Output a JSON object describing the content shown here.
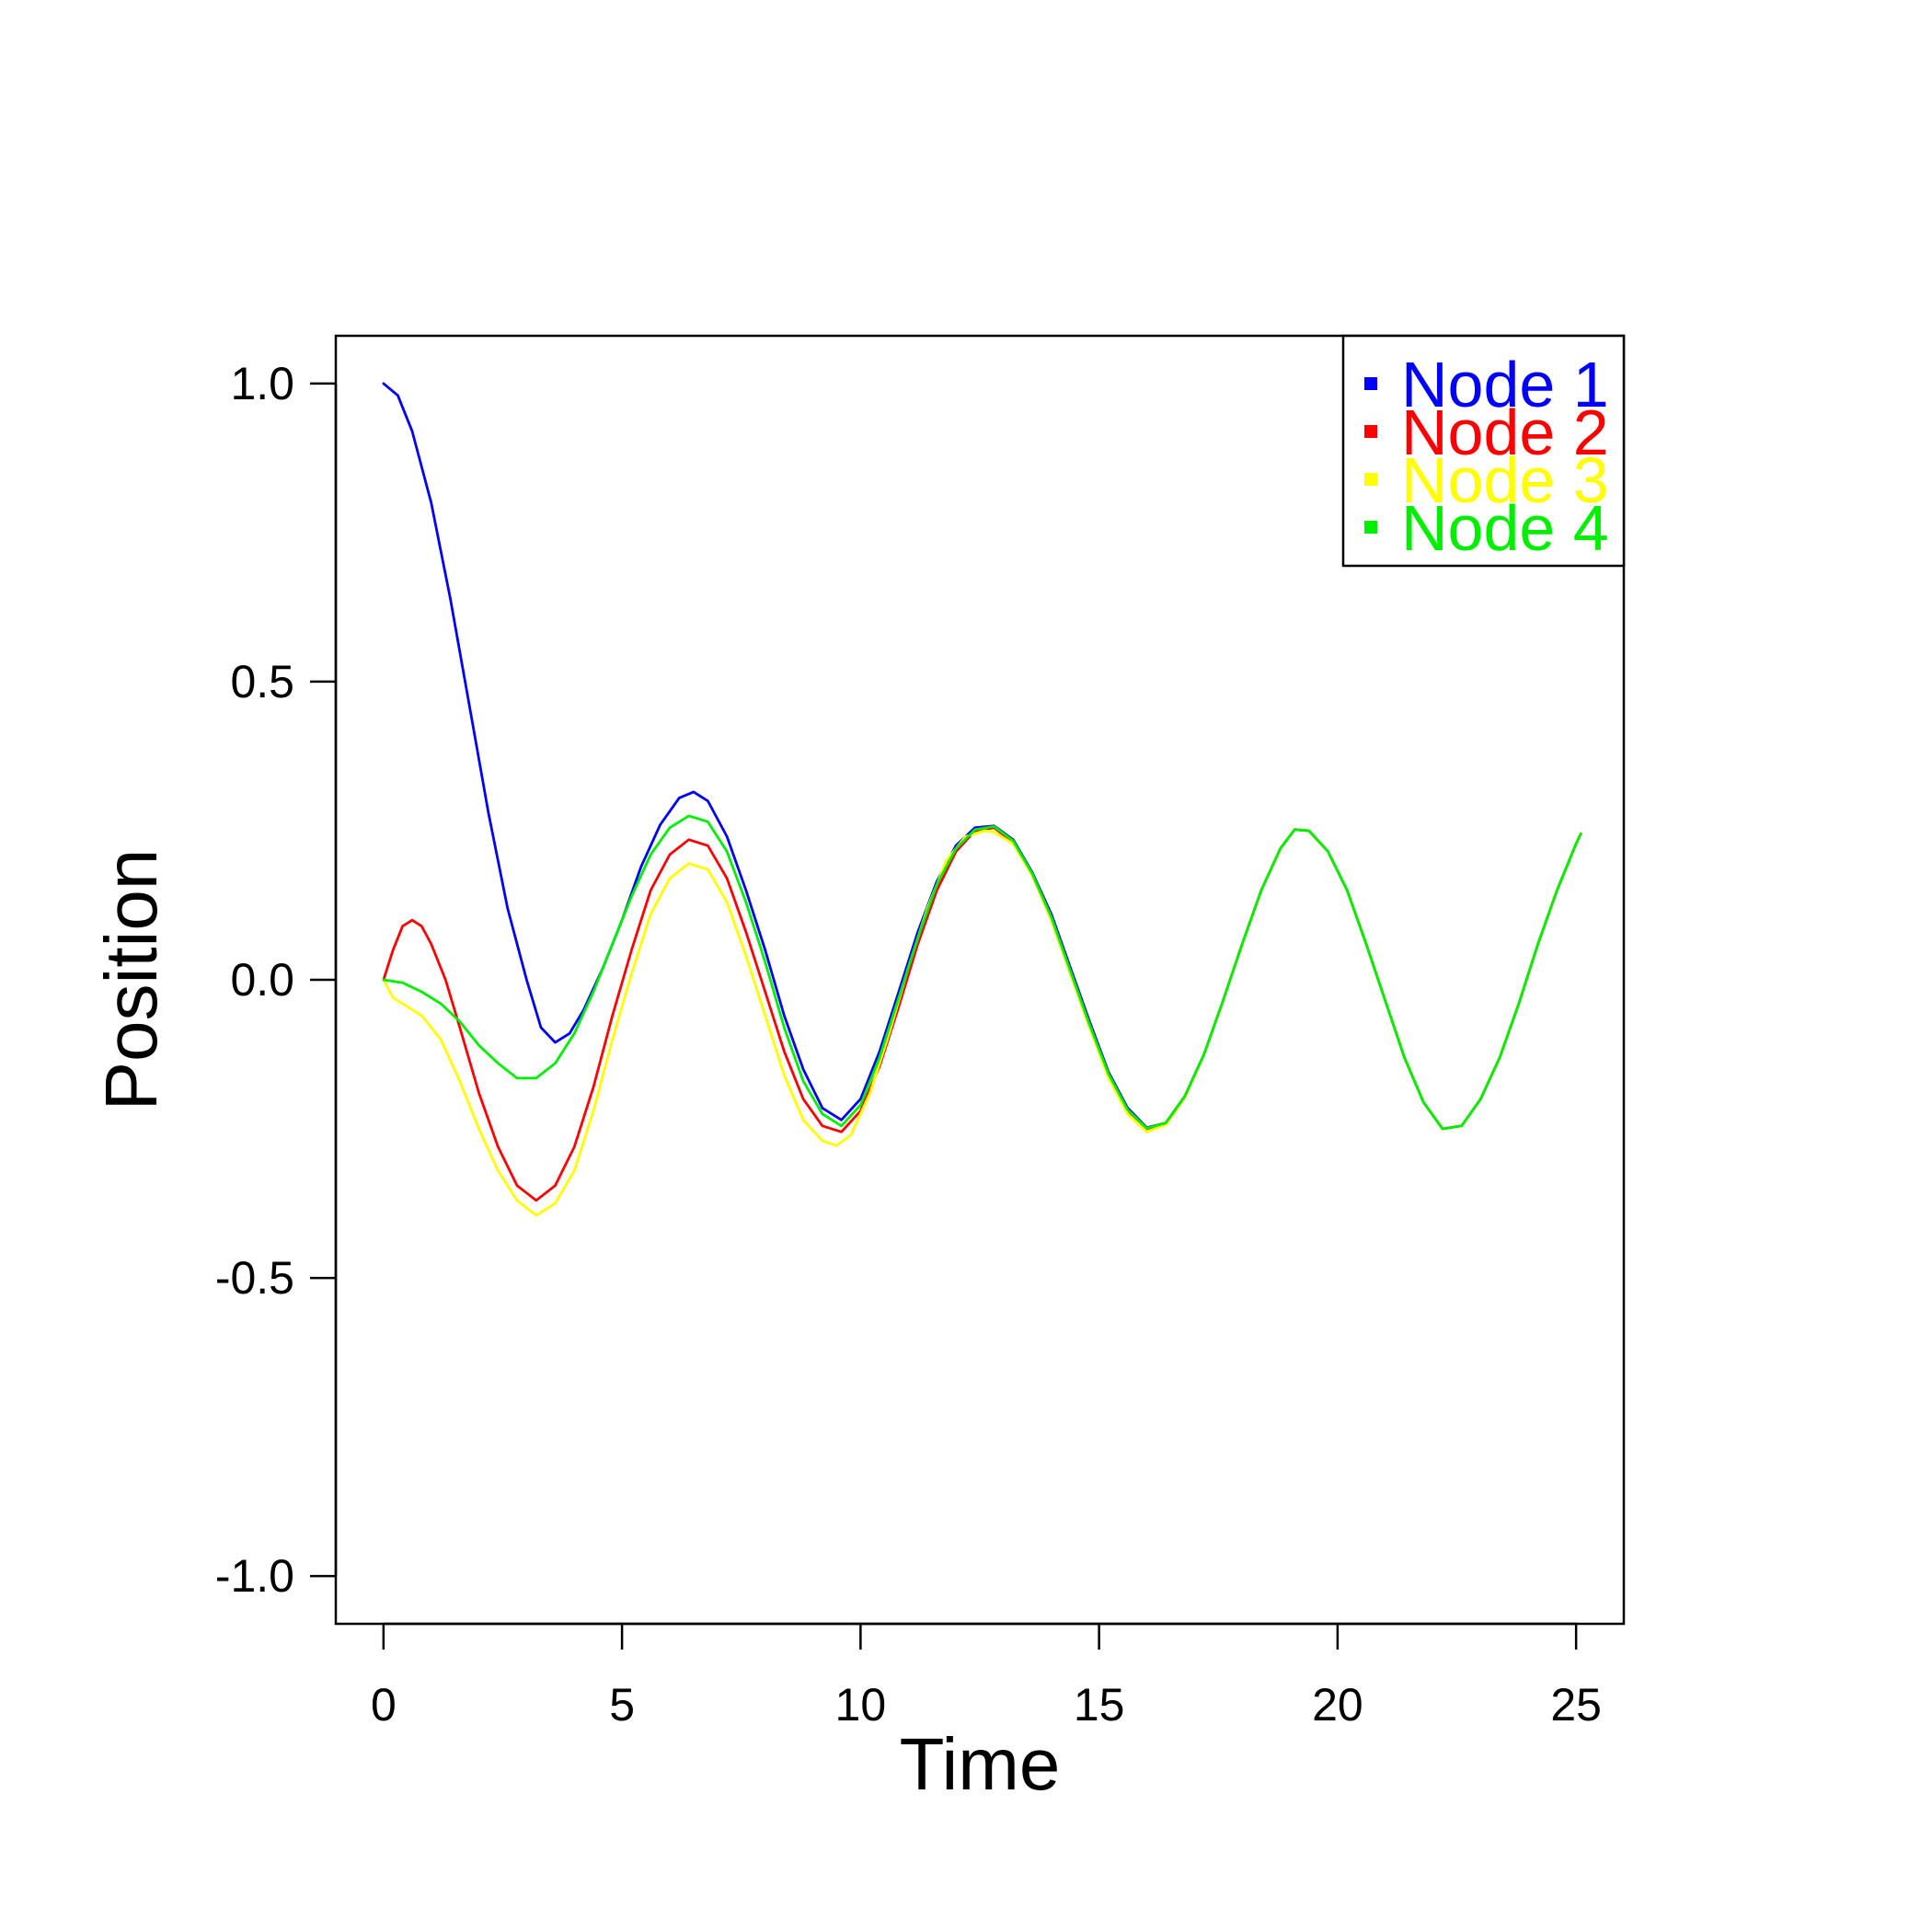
{
  "chart_data": {
    "type": "line",
    "title": "",
    "xlabel": "Time",
    "ylabel": "Position",
    "xlim": [
      -1,
      26
    ],
    "ylim": [
      -1.08,
      1.08
    ],
    "xticks": [
      0,
      5,
      10,
      15,
      20,
      25
    ],
    "yticks": [
      -1.0,
      -0.5,
      0.0,
      0.5,
      1.0
    ],
    "xtick_labels": [
      "0",
      "5",
      "10",
      "15",
      "20",
      "25"
    ],
    "ytick_labels": [
      "-1.0",
      "-0.5",
      "0.0",
      "0.5",
      "1.0"
    ],
    "grid": false,
    "legend_position": "top-right",
    "series": [
      {
        "name": "Node 1",
        "color": "#0000ff",
        "points": [
          [
            0,
            1.0
          ],
          [
            0.3,
            0.98
          ],
          [
            0.6,
            0.92
          ],
          [
            1.0,
            0.8
          ],
          [
            1.4,
            0.64
          ],
          [
            1.8,
            0.46
          ],
          [
            2.2,
            0.28
          ],
          [
            2.6,
            0.12
          ],
          [
            3.0,
            0.0
          ],
          [
            3.3,
            -0.08
          ],
          [
            3.6,
            -0.105
          ],
          [
            3.9,
            -0.09
          ],
          [
            4.2,
            -0.05
          ],
          [
            4.6,
            0.02
          ],
          [
            5.0,
            0.1
          ],
          [
            5.4,
            0.19
          ],
          [
            5.8,
            0.26
          ],
          [
            6.2,
            0.305
          ],
          [
            6.5,
            0.315
          ],
          [
            6.8,
            0.3
          ],
          [
            7.2,
            0.24
          ],
          [
            7.6,
            0.15
          ],
          [
            8.0,
            0.05
          ],
          [
            8.4,
            -0.06
          ],
          [
            8.8,
            -0.15
          ],
          [
            9.2,
            -0.215
          ],
          [
            9.6,
            -0.235
          ],
          [
            10.0,
            -0.2
          ],
          [
            10.4,
            -0.12
          ],
          [
            10.8,
            -0.02
          ],
          [
            11.2,
            0.08
          ],
          [
            11.6,
            0.165
          ],
          [
            12.0,
            0.225
          ],
          [
            12.4,
            0.255
          ],
          [
            12.8,
            0.258
          ],
          [
            13.2,
            0.235
          ],
          [
            13.6,
            0.18
          ],
          [
            14.0,
            0.11
          ],
          [
            14.4,
            0.02
          ],
          [
            14.8,
            -0.07
          ],
          [
            15.2,
            -0.155
          ],
          [
            15.6,
            -0.215
          ],
          [
            16.0,
            -0.248
          ],
          [
            16.4,
            -0.24
          ],
          [
            16.8,
            -0.195
          ],
          [
            17.2,
            -0.125
          ],
          [
            17.6,
            -0.035
          ],
          [
            18.0,
            0.06
          ],
          [
            18.4,
            0.15
          ],
          [
            18.8,
            0.22
          ],
          [
            19.1,
            0.252
          ],
          [
            19.4,
            0.25
          ],
          [
            19.8,
            0.215
          ],
          [
            20.2,
            0.15
          ],
          [
            20.6,
            0.06
          ],
          [
            21.0,
            -0.035
          ],
          [
            21.4,
            -0.13
          ],
          [
            21.8,
            -0.205
          ],
          [
            22.2,
            -0.25
          ],
          [
            22.6,
            -0.245
          ],
          [
            23.0,
            -0.2
          ],
          [
            23.4,
            -0.13
          ],
          [
            23.8,
            -0.04
          ],
          [
            24.2,
            0.06
          ],
          [
            24.6,
            0.15
          ],
          [
            25.0,
            0.228
          ],
          [
            25.1,
            0.245
          ]
        ]
      },
      {
        "name": "Node 2",
        "color": "#ff0000",
        "points": [
          [
            0,
            0.0
          ],
          [
            0.2,
            0.05
          ],
          [
            0.4,
            0.09
          ],
          [
            0.6,
            0.1
          ],
          [
            0.8,
            0.09
          ],
          [
            1.0,
            0.06
          ],
          [
            1.3,
            0.0
          ],
          [
            1.6,
            -0.08
          ],
          [
            2.0,
            -0.19
          ],
          [
            2.4,
            -0.28
          ],
          [
            2.8,
            -0.345
          ],
          [
            3.2,
            -0.37
          ],
          [
            3.6,
            -0.345
          ],
          [
            4.0,
            -0.28
          ],
          [
            4.4,
            -0.18
          ],
          [
            4.8,
            -0.06
          ],
          [
            5.2,
            0.05
          ],
          [
            5.6,
            0.15
          ],
          [
            6.0,
            0.21
          ],
          [
            6.4,
            0.235
          ],
          [
            6.8,
            0.225
          ],
          [
            7.2,
            0.17
          ],
          [
            7.6,
            0.08
          ],
          [
            8.0,
            -0.02
          ],
          [
            8.4,
            -0.12
          ],
          [
            8.8,
            -0.2
          ],
          [
            9.2,
            -0.245
          ],
          [
            9.6,
            -0.255
          ],
          [
            10.0,
            -0.22
          ],
          [
            10.4,
            -0.145
          ],
          [
            10.8,
            -0.045
          ],
          [
            11.2,
            0.06
          ],
          [
            11.6,
            0.15
          ],
          [
            12.0,
            0.215
          ],
          [
            12.4,
            0.25
          ],
          [
            12.8,
            0.255
          ],
          [
            13.2,
            0.23
          ],
          [
            13.6,
            0.175
          ],
          [
            14.0,
            0.1
          ],
          [
            14.4,
            0.01
          ],
          [
            14.8,
            -0.08
          ],
          [
            15.2,
            -0.16
          ],
          [
            15.6,
            -0.22
          ],
          [
            16.0,
            -0.25
          ],
          [
            16.4,
            -0.24
          ],
          [
            16.8,
            -0.195
          ],
          [
            17.2,
            -0.125
          ],
          [
            17.6,
            -0.035
          ],
          [
            18.0,
            0.06
          ],
          [
            18.4,
            0.15
          ],
          [
            18.8,
            0.22
          ],
          [
            19.1,
            0.252
          ],
          [
            19.4,
            0.25
          ],
          [
            19.8,
            0.215
          ],
          [
            20.2,
            0.15
          ],
          [
            20.6,
            0.06
          ],
          [
            21.0,
            -0.035
          ],
          [
            21.4,
            -0.13
          ],
          [
            21.8,
            -0.205
          ],
          [
            22.2,
            -0.25
          ],
          [
            22.6,
            -0.245
          ],
          [
            23.0,
            -0.2
          ],
          [
            23.4,
            -0.13
          ],
          [
            23.8,
            -0.04
          ],
          [
            24.2,
            0.06
          ],
          [
            24.6,
            0.15
          ],
          [
            25.0,
            0.228
          ],
          [
            25.1,
            0.245
          ]
        ]
      },
      {
        "name": "Node 3",
        "color": "#ffff00",
        "points": [
          [
            0,
            0.0
          ],
          [
            0.2,
            -0.03
          ],
          [
            0.5,
            -0.045
          ],
          [
            0.8,
            -0.06
          ],
          [
            1.2,
            -0.1
          ],
          [
            1.6,
            -0.17
          ],
          [
            2.0,
            -0.25
          ],
          [
            2.4,
            -0.32
          ],
          [
            2.8,
            -0.37
          ],
          [
            3.2,
            -0.395
          ],
          [
            3.6,
            -0.375
          ],
          [
            4.0,
            -0.32
          ],
          [
            4.4,
            -0.22
          ],
          [
            4.8,
            -0.1
          ],
          [
            5.2,
            0.01
          ],
          [
            5.6,
            0.11
          ],
          [
            6.0,
            0.17
          ],
          [
            6.4,
            0.195
          ],
          [
            6.8,
            0.185
          ],
          [
            7.2,
            0.13
          ],
          [
            7.6,
            0.04
          ],
          [
            8.0,
            -0.06
          ],
          [
            8.4,
            -0.16
          ],
          [
            8.8,
            -0.235
          ],
          [
            9.2,
            -0.27
          ],
          [
            9.5,
            -0.278
          ],
          [
            9.8,
            -0.26
          ],
          [
            10.2,
            -0.19
          ],
          [
            10.6,
            -0.09
          ],
          [
            11.0,
            0.02
          ],
          [
            11.4,
            0.12
          ],
          [
            11.8,
            0.2
          ],
          [
            12.2,
            0.24
          ],
          [
            12.6,
            0.25
          ],
          [
            12.8,
            0.248
          ],
          [
            13.2,
            0.228
          ],
          [
            13.6,
            0.175
          ],
          [
            14.0,
            0.1
          ],
          [
            14.4,
            0.01
          ],
          [
            14.8,
            -0.08
          ],
          [
            15.2,
            -0.165
          ],
          [
            15.6,
            -0.225
          ],
          [
            16.0,
            -0.255
          ],
          [
            16.4,
            -0.243
          ],
          [
            16.8,
            -0.197
          ],
          [
            17.2,
            -0.125
          ],
          [
            17.6,
            -0.035
          ],
          [
            18.0,
            0.06
          ],
          [
            18.4,
            0.15
          ],
          [
            18.8,
            0.22
          ],
          [
            19.1,
            0.252
          ],
          [
            19.4,
            0.25
          ],
          [
            19.8,
            0.215
          ],
          [
            20.2,
            0.15
          ],
          [
            20.6,
            0.06
          ],
          [
            21.0,
            -0.035
          ],
          [
            21.4,
            -0.13
          ],
          [
            21.8,
            -0.205
          ],
          [
            22.2,
            -0.25
          ],
          [
            22.6,
            -0.245
          ],
          [
            23.0,
            -0.2
          ],
          [
            23.4,
            -0.13
          ],
          [
            23.8,
            -0.04
          ],
          [
            24.2,
            0.06
          ],
          [
            24.6,
            0.15
          ],
          [
            25.0,
            0.228
          ],
          [
            25.1,
            0.245
          ]
        ]
      },
      {
        "name": "Node 4",
        "color": "#00ee00",
        "points": [
          [
            0,
            0.0
          ],
          [
            0.4,
            -0.005
          ],
          [
            0.8,
            -0.02
          ],
          [
            1.2,
            -0.04
          ],
          [
            1.6,
            -0.07
          ],
          [
            2.0,
            -0.11
          ],
          [
            2.4,
            -0.14
          ],
          [
            2.8,
            -0.165
          ],
          [
            3.2,
            -0.165
          ],
          [
            3.6,
            -0.14
          ],
          [
            4.0,
            -0.09
          ],
          [
            4.4,
            -0.02
          ],
          [
            4.8,
            0.06
          ],
          [
            5.2,
            0.14
          ],
          [
            5.6,
            0.21
          ],
          [
            6.0,
            0.255
          ],
          [
            6.4,
            0.275
          ],
          [
            6.8,
            0.265
          ],
          [
            7.2,
            0.215
          ],
          [
            7.6,
            0.13
          ],
          [
            8.0,
            0.03
          ],
          [
            8.4,
            -0.08
          ],
          [
            8.8,
            -0.17
          ],
          [
            9.2,
            -0.225
          ],
          [
            9.6,
            -0.245
          ],
          [
            10.0,
            -0.21
          ],
          [
            10.4,
            -0.13
          ],
          [
            10.8,
            -0.03
          ],
          [
            11.2,
            0.07
          ],
          [
            11.6,
            0.16
          ],
          [
            12.0,
            0.22
          ],
          [
            12.4,
            0.252
          ],
          [
            12.8,
            0.257
          ],
          [
            13.2,
            0.233
          ],
          [
            13.6,
            0.178
          ],
          [
            14.0,
            0.105
          ],
          [
            14.4,
            0.015
          ],
          [
            14.8,
            -0.075
          ],
          [
            15.2,
            -0.158
          ],
          [
            15.6,
            -0.218
          ],
          [
            16.0,
            -0.249
          ],
          [
            16.4,
            -0.24
          ],
          [
            16.8,
            -0.195
          ],
          [
            17.2,
            -0.125
          ],
          [
            17.6,
            -0.035
          ],
          [
            18.0,
            0.06
          ],
          [
            18.4,
            0.15
          ],
          [
            18.8,
            0.22
          ],
          [
            19.1,
            0.252
          ],
          [
            19.4,
            0.25
          ],
          [
            19.8,
            0.215
          ],
          [
            20.2,
            0.15
          ],
          [
            20.6,
            0.06
          ],
          [
            21.0,
            -0.035
          ],
          [
            21.4,
            -0.13
          ],
          [
            21.8,
            -0.205
          ],
          [
            22.2,
            -0.25
          ],
          [
            22.6,
            -0.245
          ],
          [
            23.0,
            -0.2
          ],
          [
            23.4,
            -0.13
          ],
          [
            23.8,
            -0.04
          ],
          [
            24.2,
            0.06
          ],
          [
            24.6,
            0.15
          ],
          [
            25.0,
            0.228
          ],
          [
            25.1,
            0.245
          ]
        ]
      }
    ]
  }
}
